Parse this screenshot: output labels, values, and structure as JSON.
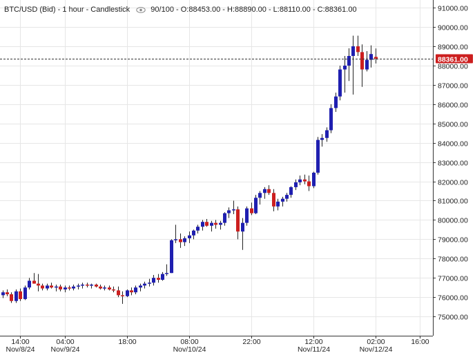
{
  "legend": {
    "symbol": "BTC/USD (Bid) - 1 hour - Candlestick",
    "eye_icon": "eye-icon",
    "count": "90/100",
    "ohlc": "O:88453.00 - H:88890.00 - L:88110.00 - C:88361.00"
  },
  "colors": {
    "up": "#1f1fb0",
    "down": "#cc1f1f",
    "grid": "#e6e6e6",
    "axis": "#333333",
    "price_tag": "#cc1f1f"
  },
  "chart_data": {
    "type": "candlestick",
    "title": "BTC/USD (Bid) - 1 hour - Candlestick",
    "ylim": [
      74000,
      91400
    ],
    "ytick_values": [
      75000,
      76000,
      77000,
      78000,
      79000,
      80000,
      81000,
      82000,
      83000,
      84000,
      85000,
      86000,
      87000,
      88000,
      89000,
      90000,
      91000
    ],
    "ytick_labels": [
      "75000.00",
      "76000.00",
      "77000.00",
      "78000.00",
      "79000.00",
      "80000.00",
      "81000.00",
      "82000.00",
      "83000.00",
      "84000.00",
      "85000.00",
      "86000.00",
      "87000.00",
      "88000.00",
      "89000.00",
      "90000.00",
      "91000.00"
    ],
    "xticks": [
      {
        "index": 4,
        "label": "14:00",
        "sublabel": "Nov/8/24"
      },
      {
        "index": 14,
        "label": "04:00",
        "sublabel": "Nov/9/24"
      },
      {
        "index": 28,
        "label": "18:00",
        "sublabel": ""
      },
      {
        "index": 42,
        "label": "08:00",
        "sublabel": "Nov/10/24"
      },
      {
        "index": 56,
        "label": "22:00",
        "sublabel": ""
      },
      {
        "index": 70,
        "label": "12:00",
        "sublabel": "Nov/11/24"
      },
      {
        "index": 84,
        "label": "02:00",
        "sublabel": "Nov/12/24"
      },
      {
        "index": 94,
        "label": "16:00",
        "sublabel": ""
      }
    ],
    "x_slots": 98,
    "last_price": 88361,
    "last_price_label": "88361.00",
    "candles": [
      {
        "o": 76100,
        "h": 76350,
        "l": 75950,
        "c": 76250
      },
      {
        "o": 76250,
        "h": 76400,
        "l": 76050,
        "c": 76150
      },
      {
        "o": 76150,
        "h": 76250,
        "l": 75700,
        "c": 75800
      },
      {
        "o": 75800,
        "h": 76400,
        "l": 75700,
        "c": 76300
      },
      {
        "o": 76300,
        "h": 76450,
        "l": 75800,
        "c": 75900
      },
      {
        "o": 75900,
        "h": 76600,
        "l": 75850,
        "c": 76500
      },
      {
        "o": 76500,
        "h": 77000,
        "l": 76400,
        "c": 76850
      },
      {
        "o": 76850,
        "h": 77250,
        "l": 76700,
        "c": 76700
      },
      {
        "o": 76700,
        "h": 77200,
        "l": 76300,
        "c": 76600
      },
      {
        "o": 76600,
        "h": 76700,
        "l": 76350,
        "c": 76450
      },
      {
        "o": 76450,
        "h": 76700,
        "l": 76350,
        "c": 76600
      },
      {
        "o": 76600,
        "h": 76750,
        "l": 76450,
        "c": 76500
      },
      {
        "o": 76500,
        "h": 76650,
        "l": 76300,
        "c": 76550
      },
      {
        "o": 76550,
        "h": 76650,
        "l": 76300,
        "c": 76400
      },
      {
        "o": 76400,
        "h": 76600,
        "l": 76250,
        "c": 76500
      },
      {
        "o": 76500,
        "h": 76600,
        "l": 76350,
        "c": 76450
      },
      {
        "o": 76450,
        "h": 76650,
        "l": 76350,
        "c": 76550
      },
      {
        "o": 76550,
        "h": 76700,
        "l": 76400,
        "c": 76600
      },
      {
        "o": 76600,
        "h": 76750,
        "l": 76450,
        "c": 76650
      },
      {
        "o": 76650,
        "h": 76750,
        "l": 76500,
        "c": 76600
      },
      {
        "o": 76600,
        "h": 76700,
        "l": 76450,
        "c": 76650
      },
      {
        "o": 76650,
        "h": 76700,
        "l": 76500,
        "c": 76550
      },
      {
        "o": 76550,
        "h": 76650,
        "l": 76400,
        "c": 76450
      },
      {
        "o": 76450,
        "h": 76600,
        "l": 76350,
        "c": 76500
      },
      {
        "o": 76500,
        "h": 76600,
        "l": 76350,
        "c": 76400
      },
      {
        "o": 76400,
        "h": 76550,
        "l": 76250,
        "c": 76350
      },
      {
        "o": 76350,
        "h": 76550,
        "l": 76000,
        "c": 76100
      },
      {
        "o": 76100,
        "h": 76300,
        "l": 75650,
        "c": 76050
      },
      {
        "o": 76050,
        "h": 76400,
        "l": 76000,
        "c": 76350
      },
      {
        "o": 76350,
        "h": 76500,
        "l": 76100,
        "c": 76250
      },
      {
        "o": 76250,
        "h": 76600,
        "l": 76150,
        "c": 76500
      },
      {
        "o": 76500,
        "h": 76700,
        "l": 76300,
        "c": 76600
      },
      {
        "o": 76600,
        "h": 76800,
        "l": 76450,
        "c": 76700
      },
      {
        "o": 76700,
        "h": 76950,
        "l": 76550,
        "c": 76750
      },
      {
        "o": 76750,
        "h": 77150,
        "l": 76600,
        "c": 77000
      },
      {
        "o": 77000,
        "h": 77200,
        "l": 76750,
        "c": 76900
      },
      {
        "o": 76900,
        "h": 77300,
        "l": 76850,
        "c": 77200
      },
      {
        "o": 77200,
        "h": 77700,
        "l": 77100,
        "c": 77250
      },
      {
        "o": 77250,
        "h": 79000,
        "l": 77250,
        "c": 78950
      },
      {
        "o": 78950,
        "h": 79750,
        "l": 78800,
        "c": 79000
      },
      {
        "o": 79000,
        "h": 79300,
        "l": 78550,
        "c": 78850
      },
      {
        "o": 78850,
        "h": 79150,
        "l": 78650,
        "c": 79050
      },
      {
        "o": 79050,
        "h": 79400,
        "l": 78800,
        "c": 79200
      },
      {
        "o": 79200,
        "h": 79500,
        "l": 79000,
        "c": 79450
      },
      {
        "o": 79450,
        "h": 79750,
        "l": 79300,
        "c": 79650
      },
      {
        "o": 79650,
        "h": 80000,
        "l": 79450,
        "c": 79900
      },
      {
        "o": 79900,
        "h": 80050,
        "l": 79650,
        "c": 79700
      },
      {
        "o": 79700,
        "h": 79950,
        "l": 79400,
        "c": 79850
      },
      {
        "o": 79850,
        "h": 80000,
        "l": 79550,
        "c": 79750
      },
      {
        "o": 79750,
        "h": 79950,
        "l": 79500,
        "c": 79850
      },
      {
        "o": 79850,
        "h": 80400,
        "l": 79700,
        "c": 80350
      },
      {
        "o": 80350,
        "h": 80650,
        "l": 80100,
        "c": 80500
      },
      {
        "o": 80500,
        "h": 81000,
        "l": 80300,
        "c": 80550
      },
      {
        "o": 80550,
        "h": 80700,
        "l": 79000,
        "c": 79400
      },
      {
        "o": 79400,
        "h": 80100,
        "l": 78450,
        "c": 79850
      },
      {
        "o": 79850,
        "h": 80700,
        "l": 79700,
        "c": 80600
      },
      {
        "o": 80600,
        "h": 80900,
        "l": 80250,
        "c": 80350
      },
      {
        "o": 80350,
        "h": 81300,
        "l": 80300,
        "c": 81150
      },
      {
        "o": 81150,
        "h": 81500,
        "l": 80800,
        "c": 81400
      },
      {
        "o": 81400,
        "h": 81700,
        "l": 81100,
        "c": 81600
      },
      {
        "o": 81600,
        "h": 81800,
        "l": 81300,
        "c": 81400
      },
      {
        "o": 81400,
        "h": 81600,
        "l": 80450,
        "c": 80700
      },
      {
        "o": 80700,
        "h": 81100,
        "l": 80500,
        "c": 80950
      },
      {
        "o": 80950,
        "h": 81200,
        "l": 80700,
        "c": 81100
      },
      {
        "o": 81100,
        "h": 81400,
        "l": 80950,
        "c": 81300
      },
      {
        "o": 81300,
        "h": 81750,
        "l": 81150,
        "c": 81700
      },
      {
        "o": 81700,
        "h": 82100,
        "l": 81550,
        "c": 81950
      },
      {
        "o": 81950,
        "h": 82300,
        "l": 81800,
        "c": 82100
      },
      {
        "o": 82100,
        "h": 82350,
        "l": 81850,
        "c": 82000
      },
      {
        "o": 82000,
        "h": 82300,
        "l": 81500,
        "c": 81750
      },
      {
        "o": 81750,
        "h": 82500,
        "l": 81650,
        "c": 82450
      },
      {
        "o": 82450,
        "h": 84300,
        "l": 82350,
        "c": 84150
      },
      {
        "o": 84150,
        "h": 84450,
        "l": 83800,
        "c": 84250
      },
      {
        "o": 84250,
        "h": 84800,
        "l": 84050,
        "c": 84650
      },
      {
        "o": 84650,
        "h": 86000,
        "l": 84500,
        "c": 85800
      },
      {
        "o": 85800,
        "h": 86600,
        "l": 85600,
        "c": 86400
      },
      {
        "o": 86400,
        "h": 88000,
        "l": 86200,
        "c": 87800
      },
      {
        "o": 87800,
        "h": 88500,
        "l": 86600,
        "c": 88000
      },
      {
        "o": 88000,
        "h": 88900,
        "l": 87200,
        "c": 88500
      },
      {
        "o": 88500,
        "h": 89550,
        "l": 86500,
        "c": 89000
      },
      {
        "o": 89000,
        "h": 89550,
        "l": 88500,
        "c": 88700
      },
      {
        "o": 88700,
        "h": 89100,
        "l": 86900,
        "c": 87800
      },
      {
        "o": 87800,
        "h": 88750,
        "l": 87700,
        "c": 88300
      },
      {
        "o": 88300,
        "h": 89050,
        "l": 87900,
        "c": 88600
      },
      {
        "o": 88453,
        "h": 88890,
        "l": 88110,
        "c": 88361
      }
    ]
  }
}
